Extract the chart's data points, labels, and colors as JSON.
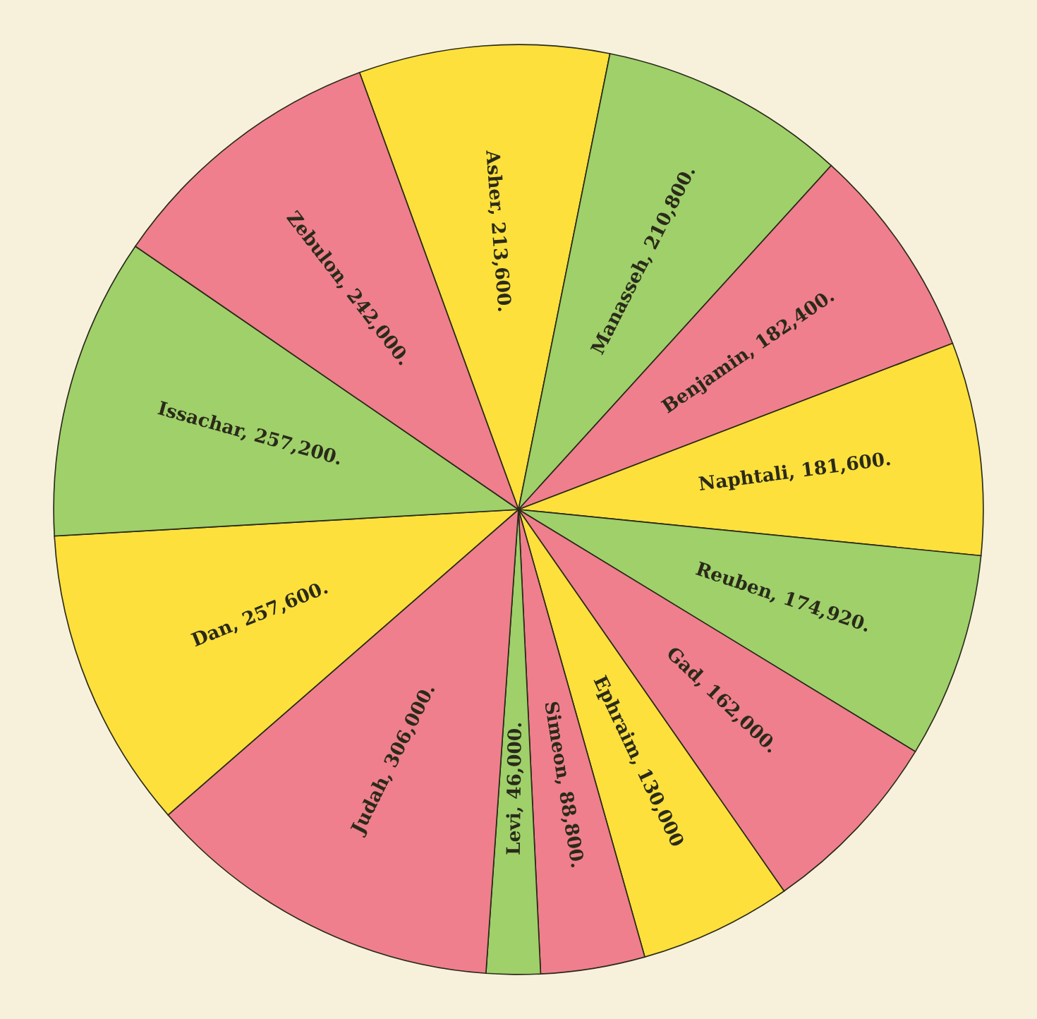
{
  "chart_data": {
    "type": "pie",
    "categories": [
      "Asher",
      "Manasseh",
      "Benjamin",
      "Naphtali",
      "Reuben",
      "Gad",
      "Ephraim",
      "Simeon",
      "Levi",
      "Judah",
      "Dan",
      "Issachar",
      "Zebulon"
    ],
    "values": [
      213600,
      210800,
      182400,
      181600,
      174920,
      162000,
      130000,
      88800,
      46000,
      306000,
      257600,
      257200,
      242000
    ],
    "value_labels": [
      "213,600.",
      "210,800.",
      "182,400.",
      "181,600.",
      "174,920.",
      "162,000.",
      "130,000",
      "88,800.",
      "46,000.",
      "306,000.",
      "257,600.",
      "257,200.",
      "242,000."
    ],
    "colors": [
      "#fde03c",
      "#9fd06a",
      "#ef7f8c",
      "#fde03c",
      "#9fd06a",
      "#ef7f8c",
      "#fde03c",
      "#ef7f8c",
      "#9fd06a",
      "#ef7f8c",
      "#fde03c",
      "#9fd06a",
      "#ef7f8c"
    ]
  }
}
